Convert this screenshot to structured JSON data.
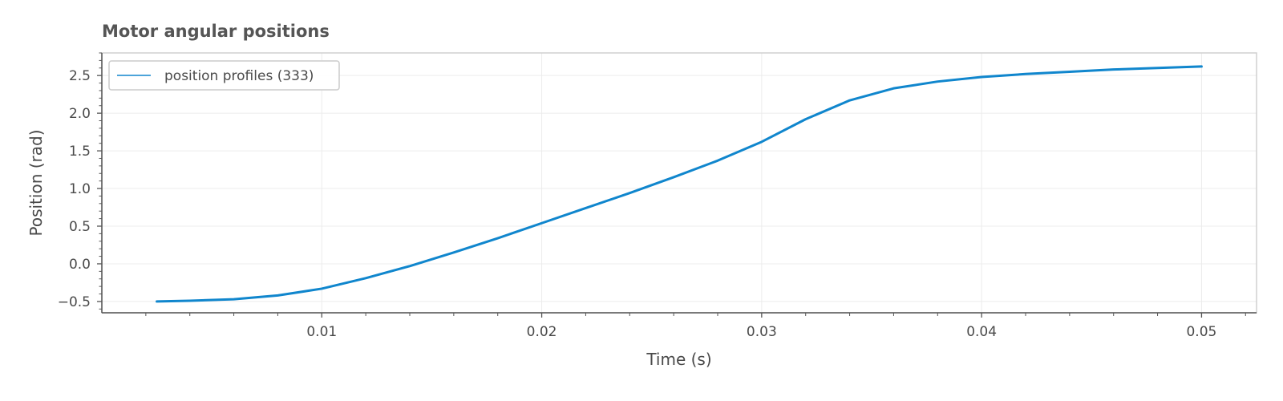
{
  "chart_data": {
    "type": "line",
    "title": "Motor angular positions",
    "xlabel": "Time (s)",
    "ylabel": "Position (rad)",
    "xlim": [
      0.0,
      0.0525
    ],
    "ylim": [
      -0.65,
      2.8
    ],
    "xticks": [
      0.01,
      0.02,
      0.03,
      0.04,
      0.05
    ],
    "xtick_labels": [
      "0.01",
      "0.02",
      "0.03",
      "0.04",
      "0.05"
    ],
    "yticks": [
      -0.5,
      0.0,
      0.5,
      1.0,
      1.5,
      2.0,
      2.5
    ],
    "ytick_labels": [
      "−0.5",
      "0.0",
      "0.5",
      "1.0",
      "1.5",
      "2.0",
      "2.5"
    ],
    "grid": true,
    "legend_position": "top-left",
    "series_color": "#1086cd",
    "series": [
      {
        "name": "position profiles (333)",
        "x": [
          0.0025,
          0.004,
          0.006,
          0.008,
          0.01,
          0.012,
          0.014,
          0.016,
          0.018,
          0.02,
          0.022,
          0.024,
          0.026,
          0.028,
          0.03,
          0.032,
          0.034,
          0.036,
          0.038,
          0.04,
          0.042,
          0.044,
          0.046,
          0.048,
          0.05
        ],
        "y": [
          -0.5,
          -0.49,
          -0.47,
          -0.42,
          -0.33,
          -0.19,
          -0.03,
          0.15,
          0.34,
          0.54,
          0.74,
          0.94,
          1.15,
          1.37,
          1.62,
          1.92,
          2.17,
          2.33,
          2.42,
          2.48,
          2.52,
          2.55,
          2.58,
          2.6,
          2.62
        ]
      }
    ]
  }
}
